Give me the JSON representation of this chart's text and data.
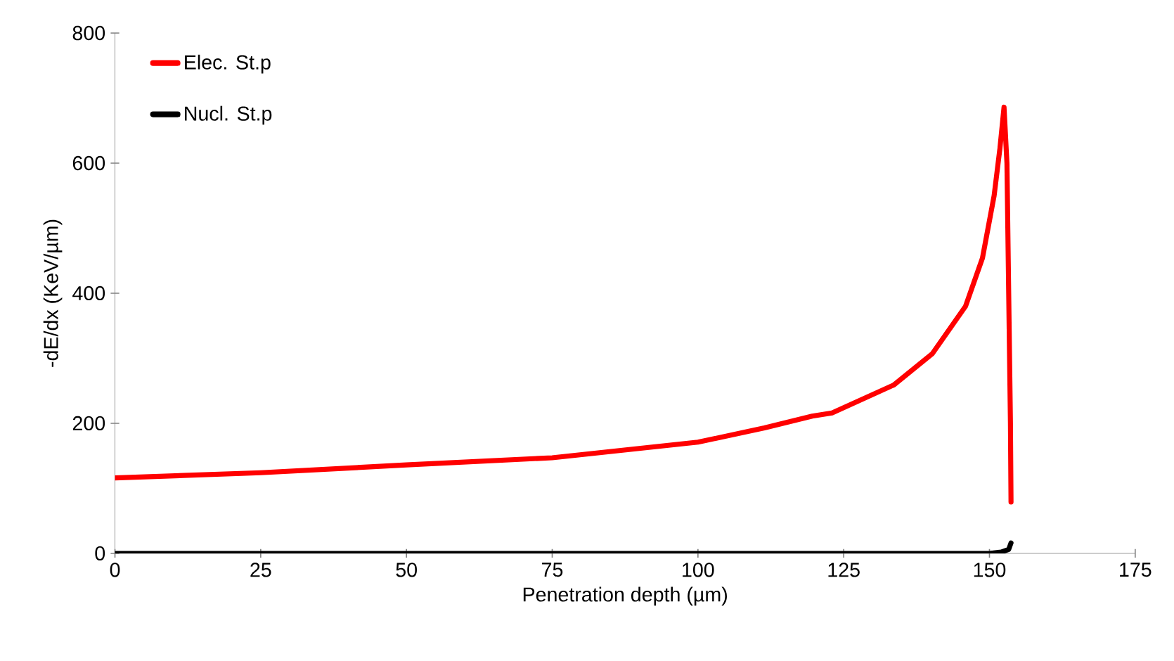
{
  "chart_data": {
    "type": "line",
    "xlabel": "Penetration depth (µm)",
    "ylabel": "-dE/dx (KeV/µm)",
    "xlim": [
      0,
      175
    ],
    "xticks": [
      0,
      25,
      50,
      75,
      100,
      125,
      150,
      175
    ],
    "ylim": [
      0,
      800
    ],
    "yticks": [
      0,
      200,
      400,
      600,
      800
    ],
    "grid": false,
    "legend": "top left",
    "marker": "none",
    "line_style": "solid",
    "series": [
      {
        "name": "Elec. St.p",
        "color": "#ff0000",
        "x": [
          0,
          25,
          50,
          75,
          100,
          111.4,
          119.6,
          123,
          133.6,
          140.2,
          145.9,
          148.8,
          150.8,
          151.8,
          152.5,
          153,
          153.3,
          153.6,
          153.7
        ],
        "values": [
          116,
          124,
          136,
          147,
          171,
          193,
          211,
          216,
          259,
          307,
          380,
          454,
          550,
          623,
          686,
          600,
          400,
          200,
          79
        ]
      },
      {
        "name": "Nucl. St.p",
        "color": "#000000",
        "x": [
          0,
          50,
          100,
          150,
          152,
          153.3,
          153.7
        ],
        "values": [
          0,
          0,
          0,
          0,
          2,
          6,
          16
        ]
      }
    ]
  }
}
